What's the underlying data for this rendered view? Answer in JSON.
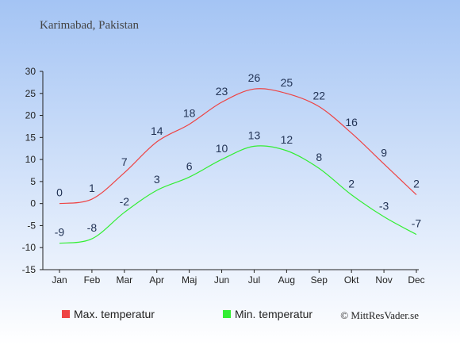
{
  "chart_data": {
    "type": "line",
    "title": "Karimabad, Pakistan",
    "categories": [
      "Jan",
      "Feb",
      "Mar",
      "Apr",
      "Maj",
      "Jun",
      "Jul",
      "Aug",
      "Sep",
      "Okt",
      "Nov",
      "Dec"
    ],
    "series": [
      {
        "name": "Max. temperatur",
        "color": "#ee4444",
        "values": [
          0,
          1,
          7,
          14,
          18,
          23,
          26,
          25,
          22,
          16,
          9,
          2
        ]
      },
      {
        "name": "Min. temperatur",
        "color": "#33ee33",
        "values": [
          -9,
          -8,
          -2,
          3,
          6,
          10,
          13,
          12,
          8,
          2,
          -3,
          -7
        ]
      }
    ],
    "ylim": [
      -15,
      30
    ],
    "yticks": [
      -15,
      -10,
      -5,
      0,
      5,
      10,
      15,
      20,
      25,
      30
    ],
    "xlabel": "",
    "ylabel": "",
    "legend_position": "bottom",
    "grid": false
  },
  "credit": "© MittResVader.se",
  "colors": {
    "bg_top": "#a4c4f4",
    "bg_bottom": "#ffffff"
  }
}
